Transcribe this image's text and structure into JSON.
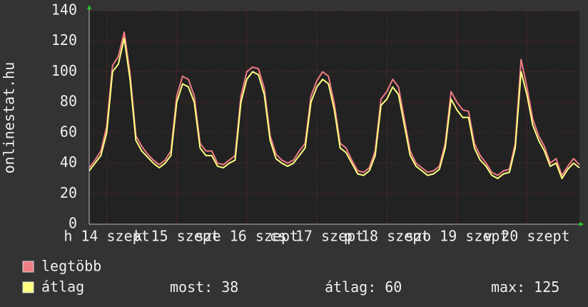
{
  "chart_data": {
    "type": "line",
    "ylabel": "onlinestat.hu",
    "x": [
      6,
      8,
      10,
      12,
      14,
      16,
      18,
      20,
      22,
      24,
      26,
      28,
      30,
      32,
      34,
      36,
      38,
      40,
      42,
      44,
      46,
      48,
      50,
      52,
      54,
      56,
      58,
      60,
      62,
      64,
      66,
      68,
      70,
      72,
      74,
      76,
      78,
      80,
      82,
      84,
      86,
      88,
      90,
      92,
      94,
      96,
      98,
      100,
      102,
      104,
      106,
      108,
      110,
      112,
      114,
      116,
      118,
      120,
      122,
      124,
      126,
      128,
      130,
      132,
      134,
      136,
      138,
      140,
      142,
      144,
      146,
      148,
      150,
      152,
      154,
      156,
      158,
      160,
      162,
      164,
      166,
      168,
      170,
      172,
      174
    ],
    "series": [
      {
        "name": "legtöbb",
        "color": "#f07c84",
        "values": [
          37,
          42,
          48,
          64,
          104,
          110,
          126,
          99,
          58,
          51,
          46,
          42,
          39,
          42,
          48,
          84,
          97,
          95,
          84,
          53,
          48,
          48,
          40,
          39,
          42,
          45,
          84,
          100,
          103,
          102,
          89,
          58,
          46,
          42,
          40,
          42,
          48,
          53,
          84,
          94,
          100,
          97,
          79,
          53,
          50,
          42,
          35,
          34,
          37,
          48,
          82,
          87,
          95,
          90,
          69,
          48,
          40,
          37,
          34,
          35,
          38,
          53,
          87,
          80,
          75,
          74,
          53,
          45,
          40,
          34,
          32,
          35,
          36,
          53,
          108,
          90,
          69,
          58,
          51,
          40,
          43,
          32,
          38,
          43,
          39
        ]
      },
      {
        "name": "átlag",
        "color": "#ffff80",
        "values": [
          35,
          40,
          45,
          60,
          100,
          105,
          122,
          95,
          55,
          48,
          44,
          40,
          37,
          40,
          45,
          80,
          92,
          90,
          80,
          50,
          45,
          45,
          38,
          37,
          40,
          42,
          80,
          95,
          100,
          98,
          85,
          55,
          43,
          40,
          38,
          40,
          45,
          50,
          80,
          90,
          95,
          92,
          75,
          50,
          47,
          40,
          33,
          32,
          35,
          45,
          78,
          82,
          90,
          85,
          65,
          45,
          38,
          35,
          32,
          33,
          36,
          50,
          82,
          75,
          70,
          70,
          50,
          42,
          38,
          32,
          30,
          33,
          34,
          50,
          100,
          85,
          65,
          55,
          48,
          38,
          40,
          30,
          36,
          40,
          37
        ]
      }
    ],
    "xlim": [
      6,
      174
    ],
    "xticks": [
      {
        "value": 12,
        "label": "h 14 szept"
      },
      {
        "value": 36,
        "label": "k 15 szept"
      },
      {
        "value": 60,
        "label": "sze 16 szept"
      },
      {
        "value": 84,
        "label": "cs 17 szept"
      },
      {
        "value": 108,
        "label": "p 18 szept"
      },
      {
        "value": 132,
        "label": "szo 19 szept"
      },
      {
        "value": 156,
        "label": "v 20 szept"
      }
    ],
    "ylim": [
      0,
      140
    ],
    "yticks": [
      0,
      20,
      40,
      60,
      80,
      100,
      120,
      140
    ],
    "grid": true,
    "stats": [
      {
        "label": "most:",
        "value": 38
      },
      {
        "label": "átlag:",
        "value": 60
      },
      {
        "label": "max:",
        "value": 125
      }
    ]
  }
}
